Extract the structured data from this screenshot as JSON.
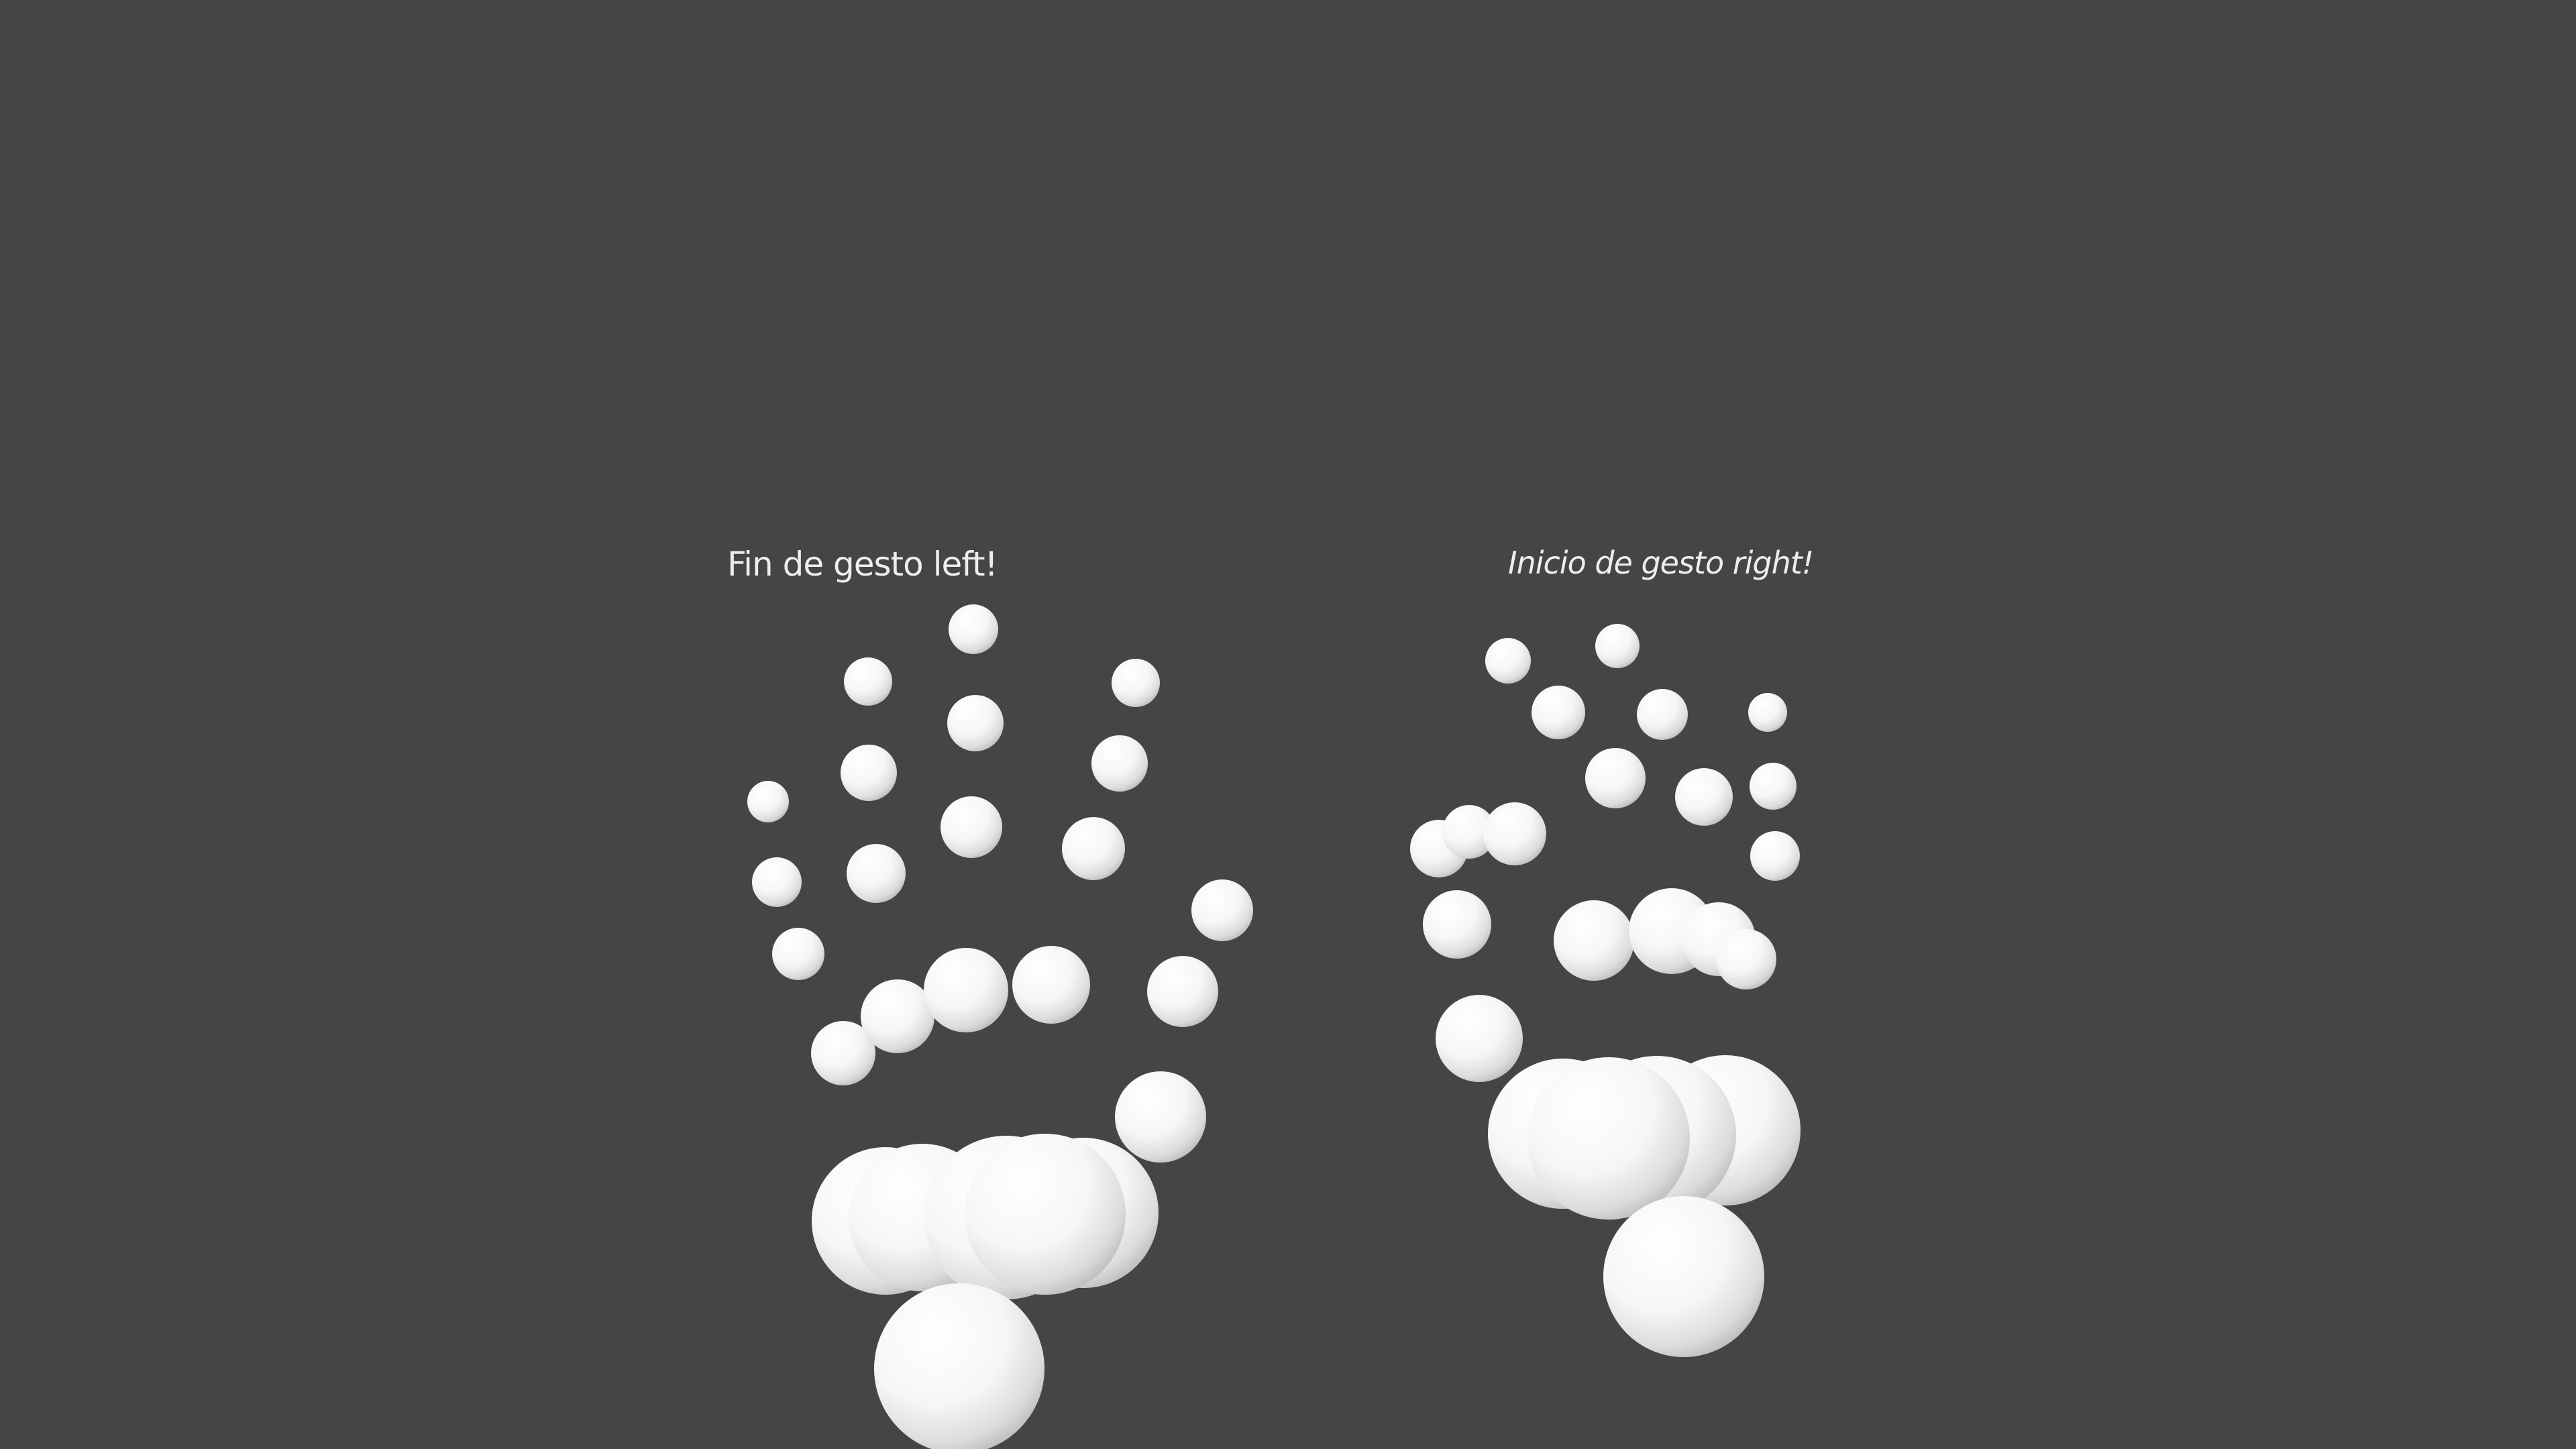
{
  "scene": {
    "background_color": "#454545",
    "joint_color": "#ffffff"
  },
  "left_hand": {
    "status_text": "Fin de gesto left!"
  },
  "right_hand": {
    "status_text": "Inicio de gesto right!"
  }
}
